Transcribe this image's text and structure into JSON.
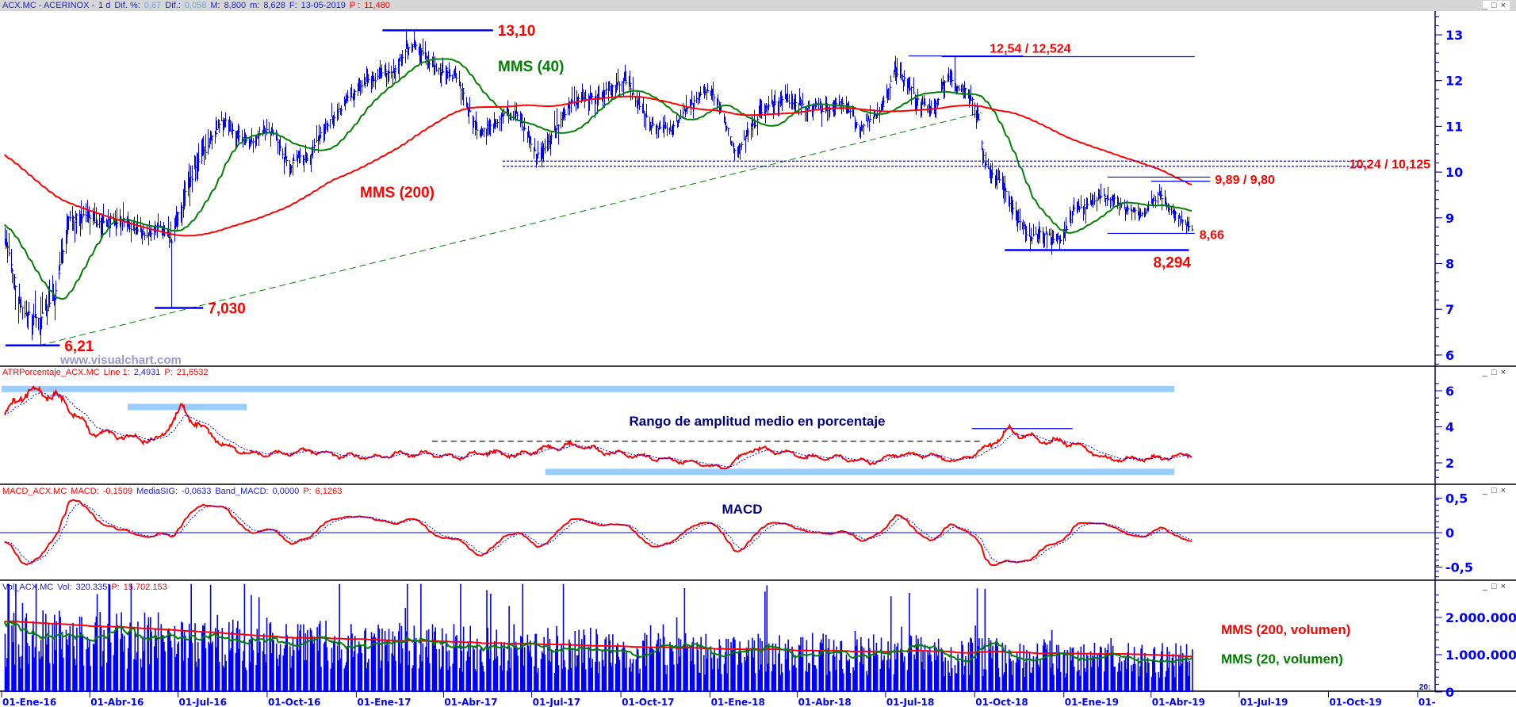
{
  "main_header": {
    "symbol": "ACX.MC - ACERINOX -",
    "period": "1 d",
    "dif_pct_label": "Dif. %:",
    "dif_pct": "0,67",
    "dif_label": "Dif.:",
    "dif": "0,058",
    "max_label": "M:",
    "max": "8,800",
    "min_label": "m:",
    "min": "8,628",
    "date_label": "F:",
    "date": "13-05-2019",
    "p_label": "P :",
    "p": "11,480"
  },
  "atr_header": {
    "name": "ATRPorcentaje_ACX.MC",
    "line_label": "Line 1:",
    "line": "2,4931",
    "p_label": "P:",
    "p": "21,6532"
  },
  "macd_header": {
    "name": "MACD_ACX.MC",
    "macd_label": "MACD:",
    "macd": "-0,1509",
    "sig_label": "MediaSIG:",
    "sig": "-0,0633",
    "band_label": "Band_MACD:",
    "band": "0,0000",
    "p_label": "P:",
    "p": "6,1263"
  },
  "vol_header": {
    "name": "Vol_ACX.MC",
    "vol_label": "Vol:",
    "vol": "320.335",
    "p_label": "P:",
    "p": "15.702.153"
  },
  "window_controls": {
    "minimize": "_",
    "maximize": "□",
    "close": "×"
  },
  "watermark": "www.visualchart.com",
  "colors": {
    "bars": "#0000ff",
    "mms40": "#008000",
    "mms200": "#ff0000",
    "annotation": "#ff0000",
    "band": "#99ccff",
    "axis": "#0000ff",
    "title_bg": "#d6d6d6"
  },
  "chart_data": [
    {
      "type": "ohlc",
      "panel": "price",
      "yticks": [
        "13",
        "12",
        "11",
        "10",
        "9",
        "8",
        "7",
        "6"
      ],
      "ylim": [
        5.8,
        13.5
      ],
      "xticks": [
        "01-Ene-16",
        "01-Abr-16",
        "01-Jul-16",
        "01-Oct-16",
        "01-Ene-17",
        "01-Abr-17",
        "01-Jul-17",
        "01-Oct-17",
        "01-Ene-18",
        "01-Abr-18",
        "01-Jul-18",
        "01-Oct-18",
        "01-Ene-19",
        "01-Abr-19",
        "01-Jul-19",
        "01-Oct-19",
        "01-"
      ],
      "xtick_dates": [
        "2016-01-01",
        "2016-04-01",
        "2016-07-01",
        "2016-10-01",
        "2017-01-01",
        "2017-04-01",
        "2017-07-01",
        "2017-10-01",
        "2018-01-01",
        "2018-04-01",
        "2018-07-01",
        "2018-10-01",
        "2019-01-01",
        "2019-04-01",
        "2019-07-01",
        "2019-10-01",
        "2020-01-01"
      ],
      "xtick_extra": "20:",
      "x_range": [
        "2016-01-01",
        "2020-01-15"
      ],
      "last_date": "2019-05-13",
      "close_path": [
        [
          "2016-01-04",
          8.4
        ],
        [
          "2016-01-20",
          7.0
        ],
        [
          "2016-02-09",
          6.5
        ],
        [
          "2016-02-25",
          7.3
        ],
        [
          "2016-03-10",
          8.9
        ],
        [
          "2016-03-30",
          9.0
        ],
        [
          "2016-04-20",
          8.9
        ],
        [
          "2016-05-15",
          8.8
        ],
        [
          "2016-06-10",
          8.7
        ],
        [
          "2016-06-24",
          8.4
        ],
        [
          "2016-07-08",
          9.5
        ],
        [
          "2016-07-25",
          10.5
        ],
        [
          "2016-08-15",
          11.0
        ],
        [
          "2016-09-10",
          10.6
        ],
        [
          "2016-10-05",
          10.8
        ],
        [
          "2016-10-25",
          10.2
        ],
        [
          "2016-11-10",
          10.2
        ],
        [
          "2016-11-30",
          11.0
        ],
        [
          "2016-12-20",
          11.6
        ],
        [
          "2017-01-15",
          12.0
        ],
        [
          "2017-02-10",
          12.3
        ],
        [
          "2017-03-02",
          12.8
        ],
        [
          "2017-03-25",
          12.3
        ],
        [
          "2017-04-15",
          12.1
        ],
        [
          "2017-05-05",
          11.0
        ],
        [
          "2017-05-25",
          11.1
        ],
        [
          "2017-06-15",
          11.2
        ],
        [
          "2017-07-05",
          10.4
        ],
        [
          "2017-07-20",
          10.8
        ],
        [
          "2017-08-10",
          11.5
        ],
        [
          "2017-09-05",
          11.6
        ],
        [
          "2017-09-25",
          11.8
        ],
        [
          "2017-10-10",
          11.9
        ],
        [
          "2017-10-31",
          11.0
        ],
        [
          "2017-11-20",
          10.9
        ],
        [
          "2017-12-10",
          11.4
        ],
        [
          "2017-12-28",
          11.8
        ],
        [
          "2018-01-10",
          11.6
        ],
        [
          "2018-01-25",
          10.6
        ],
        [
          "2018-02-15",
          11.0
        ],
        [
          "2018-03-10",
          11.6
        ],
        [
          "2018-04-05",
          11.5
        ],
        [
          "2018-04-25",
          11.4
        ],
        [
          "2018-05-15",
          11.4
        ],
        [
          "2018-06-05",
          10.9
        ],
        [
          "2018-06-25",
          11.3
        ],
        [
          "2018-07-10",
          12.2
        ],
        [
          "2018-07-25",
          11.9
        ],
        [
          "2018-08-15",
          11.3
        ],
        [
          "2018-09-05",
          12.1
        ],
        [
          "2018-09-20",
          11.8
        ],
        [
          "2018-10-05",
          11.1
        ],
        [
          "2018-10-11",
          10.0
        ],
        [
          "2018-10-25",
          9.7
        ],
        [
          "2018-11-15",
          8.9
        ],
        [
          "2018-12-10",
          8.6
        ],
        [
          "2018-12-28",
          8.5
        ],
        [
          "2019-01-10",
          9.2
        ],
        [
          "2019-02-01",
          9.3
        ],
        [
          "2019-02-20",
          9.5
        ],
        [
          "2019-03-05",
          9.1
        ],
        [
          "2019-03-25",
          9.0
        ],
        [
          "2019-04-08",
          9.5
        ],
        [
          "2019-04-25",
          9.1
        ],
        [
          "2019-05-13",
          8.7
        ]
      ],
      "extremes": [
        {
          "date": "2016-02-10",
          "low": 6.21
        },
        {
          "date": "2016-06-24",
          "low": 7.03
        },
        {
          "date": "2017-03-01",
          "high": 13.1
        },
        {
          "date": "2018-07-11",
          "high": 12.54
        },
        {
          "date": "2018-09-10",
          "high": 12.524
        },
        {
          "date": "2018-12-27",
          "low": 8.294
        }
      ],
      "indicators": [
        {
          "name": "MMS (40)",
          "period": 40
        },
        {
          "name": "MMS (200)",
          "period": 200
        }
      ],
      "annotations": [
        {
          "label": "6,21",
          "price": 6.21,
          "from": "2016-01-05",
          "to": "2016-03-01"
        },
        {
          "label": "7,030",
          "price": 7.03,
          "from": "2016-06-07",
          "to": "2016-07-27"
        },
        {
          "label": "13,10",
          "price": 13.1,
          "from": "2017-01-28",
          "to": "2017-05-22"
        },
        {
          "label": "12,54 / 12,524",
          "price": 12.54,
          "price2": 12.524,
          "from": "2018-07-25",
          "to": "2018-11-20",
          "from2": "2018-08-28",
          "to2": "2019-05-16"
        },
        {
          "label": "10,24 / 10,125",
          "price": 10.24,
          "price2": 10.125,
          "from": "2017-06-01",
          "to": "2019-11-12",
          "dotted": true
        },
        {
          "label": "9,89 / 9,80",
          "price": 9.89,
          "price2": 9.8,
          "from": "2019-02-15",
          "to": "2019-06-01",
          "from2": "2019-04-01",
          "to2": "2019-06-01"
        },
        {
          "label": "8,66",
          "price": 8.66,
          "from": "2019-02-15",
          "to": "2019-05-16"
        },
        {
          "label": "8,294",
          "price": 8.294,
          "from": "2018-11-01",
          "to": "2019-05-10",
          "below": true
        }
      ],
      "trendline": {
        "from": [
          "2016-02-09",
          6.21
        ],
        "to": [
          "2018-10-08",
          11.3
        ]
      },
      "labels": {
        "mms40": "MMS (40)",
        "mms200": "MMS (200)"
      }
    },
    {
      "type": "line",
      "panel": "atr",
      "yticks": [
        "6",
        "4",
        "2"
      ],
      "title": "Rango de amplitud medio en porcentaje",
      "atr_path": [
        [
          "2016-01-04",
          4.6
        ],
        [
          "2016-01-20",
          5.8
        ],
        [
          "2016-02-10",
          6.0
        ],
        [
          "2016-03-05",
          5.4
        ],
        [
          "2016-04-01",
          3.8
        ],
        [
          "2016-05-01",
          3.5
        ],
        [
          "2016-06-10",
          3.2
        ],
        [
          "2016-07-05",
          5.0
        ],
        [
          "2016-07-25",
          4.0
        ],
        [
          "2016-08-20",
          2.9
        ],
        [
          "2016-09-15",
          2.5
        ],
        [
          "2016-10-15",
          2.5
        ],
        [
          "2016-11-15",
          2.7
        ],
        [
          "2016-12-15",
          2.4
        ],
        [
          "2017-01-15",
          2.3
        ],
        [
          "2017-02-15",
          2.5
        ],
        [
          "2017-03-15",
          2.5
        ],
        [
          "2017-04-15",
          2.3
        ],
        [
          "2017-05-15",
          2.6
        ],
        [
          "2017-06-15",
          2.4
        ],
        [
          "2017-07-15",
          2.8
        ],
        [
          "2017-08-15",
          3.0
        ],
        [
          "2017-09-15",
          2.6
        ],
        [
          "2017-10-15",
          2.4
        ],
        [
          "2017-11-15",
          2.2
        ],
        [
          "2017-12-15",
          2.0
        ],
        [
          "2018-01-15",
          1.7
        ],
        [
          "2018-02-15",
          2.8
        ],
        [
          "2018-03-15",
          2.6
        ],
        [
          "2018-04-15",
          2.3
        ],
        [
          "2018-05-15",
          2.3
        ],
        [
          "2018-06-15",
          2.0
        ],
        [
          "2018-07-15",
          2.5
        ],
        [
          "2018-08-15",
          2.4
        ],
        [
          "2018-09-15",
          2.1
        ],
        [
          "2018-10-15",
          2.9
        ],
        [
          "2018-11-05",
          3.8
        ],
        [
          "2018-12-05",
          3.3
        ],
        [
          "2019-01-10",
          3.1
        ],
        [
          "2019-02-15",
          2.2
        ],
        [
          "2019-03-15",
          2.2
        ],
        [
          "2019-04-15",
          2.3
        ],
        [
          "2019-05-13",
          2.5
        ]
      ],
      "bands": [
        {
          "value": 6.1,
          "from": "2016-01-01",
          "to": "2019-04-25"
        },
        {
          "value": 5.1,
          "from": "2016-05-10",
          "to": "2016-09-10"
        },
        {
          "value": 1.5,
          "from": "2017-07-15",
          "to": "2019-04-25"
        }
      ],
      "levels": [
        {
          "value": 3.2,
          "from": "2017-03-20",
          "to": "2018-10-10",
          "dashed": true
        },
        {
          "value": 3.9,
          "from": "2018-09-28",
          "to": "2019-01-10",
          "dashed": false
        }
      ]
    },
    {
      "type": "line",
      "panel": "macd",
      "yticks": [
        "0,5",
        "0",
        "-0,5"
      ],
      "title": "MACD",
      "series": [
        {
          "name": "MACD"
        },
        {
          "name": "MediaSIG"
        }
      ]
    },
    {
      "type": "bar",
      "panel": "volume",
      "yticks": [
        "2.000.000",
        "1.000.000",
        "0"
      ],
      "volume_level": [
        [
          "2016-01-01",
          1800000
        ],
        [
          "2016-07-01",
          1700000
        ],
        [
          "2017-01-01",
          1500000
        ],
        [
          "2017-07-01",
          1450000
        ],
        [
          "2018-01-01",
          1300000
        ],
        [
          "2018-07-01",
          1250000
        ],
        [
          "2019-01-01",
          1100000
        ],
        [
          "2019-05-13",
          1050000
        ]
      ],
      "labels": {
        "mms200": "MMS (200, volumen)",
        "mms20": "MMS (20, volumen)"
      }
    }
  ]
}
